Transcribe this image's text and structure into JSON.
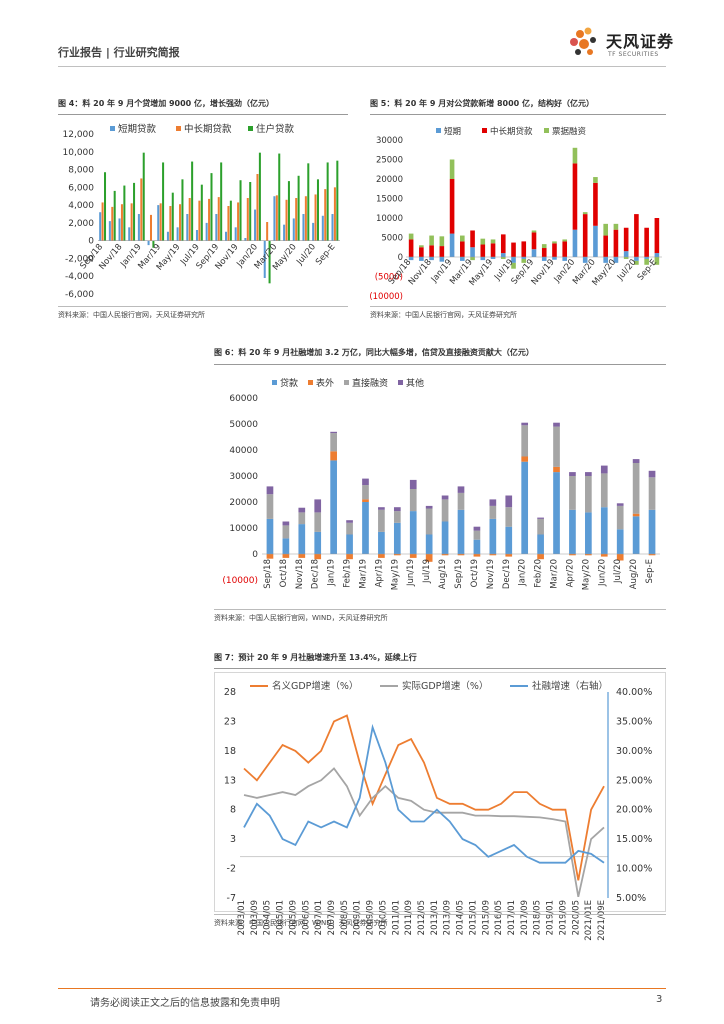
{
  "header": {
    "left_text": "行业报告 | 行业研究简报",
    "logo_cn": "天风证券",
    "logo_en": "TF SECURITIES"
  },
  "colors": {
    "blue": "#5b9bd5",
    "orange": "#ed7d31",
    "green": "#2ca02c",
    "red": "#e00000",
    "lightgreen": "#92c05a",
    "gray": "#a5a5a5",
    "purple": "#8064a2",
    "accent": "#e87722",
    "neg_label": "#e00000"
  },
  "figures": [
    {
      "title": "图 4：料 20 年 9 月个贷增加 9000 亿，增长强劲（亿元）",
      "source": "资料来源：中国人民银行官网，天风证券研究所"
    },
    {
      "title": "图 5：料 20 年 9 月对公贷款新增 8000 亿，结构好（亿元）",
      "source": "资料来源：中国人民银行官网，天风证券研究所"
    },
    {
      "title": "图 6：料 20 年 9 月社融增加 3.2 万亿，同比大幅多增，信贷及直接融资贡献大（亿元）",
      "source": "资料来源：中国人民银行官网，WIND，天风证券研究所"
    },
    {
      "title": "图 7：预计 20 年 9 月社融增速升至 13.4%，延续上行",
      "source": "资料来源：中国人民银行官网，WIND，天风证券研究所"
    }
  ],
  "chart_data": [
    {
      "id": "fig4",
      "type": "bar",
      "categories": [
        "Sep/18",
        "Oct/18",
        "Nov/18",
        "Dec/18",
        "Jan/19",
        "Feb/19",
        "Mar/19",
        "Apr/19",
        "May/19",
        "Jun/19",
        "Jul/19",
        "Aug/19",
        "Sep/19",
        "Oct/19",
        "Nov/19",
        "Dec/19",
        "Jan/20",
        "Feb/20",
        "Mar/20",
        "Apr/20",
        "May/20",
        "Jun/20",
        "Jul/20",
        "Aug/20",
        "Sep-E"
      ],
      "tick_labels": [
        "Sep/18",
        "Nov/18",
        "Jan/19",
        "Mar/19",
        "May/19",
        "Jul/19",
        "Sep/19",
        "Nov/19",
        "Jan/20",
        "Mar/20",
        "May/20",
        "Jul/20",
        "Sep-E"
      ],
      "tick_index": [
        0,
        2,
        4,
        6,
        8,
        10,
        12,
        14,
        16,
        18,
        20,
        22,
        24
      ],
      "series": [
        {
          "name": "短期贷款",
          "color_key": "blue",
          "values": [
            3200,
            2200,
            2500,
            1500,
            3000,
            -500,
            4000,
            1000,
            1500,
            3000,
            1200,
            2000,
            3000,
            1000,
            1500,
            300,
            3500,
            -4200,
            5000,
            1800,
            2500,
            3000,
            2000,
            2800,
            3000
          ]
        },
        {
          "name": "中长期贷款",
          "color_key": "orange",
          "values": [
            4300,
            3800,
            4100,
            4200,
            7000,
            2900,
            4200,
            3900,
            4100,
            4800,
            4500,
            4700,
            4900,
            3900,
            4300,
            4800,
            7500,
            2100,
            5100,
            4600,
            4800,
            5000,
            5200,
            5800,
            6000
          ]
        },
        {
          "name": "住户贷款",
          "color_key": "green",
          "values": [
            7700,
            5600,
            6200,
            6500,
            9900,
            -800,
            8800,
            5400,
            6900,
            8900,
            6300,
            7600,
            8800,
            4500,
            6800,
            6600,
            9900,
            -4800,
            9800,
            6700,
            7300,
            8700,
            6900,
            8800,
            9000
          ]
        }
      ],
      "ylim": [
        -6000,
        12000
      ],
      "yticks": [
        "12,000",
        "10,000",
        "8,000",
        "6,000",
        "4,000",
        "2,000",
        "0",
        "-2,000",
        "-4,000",
        "-6,000"
      ]
    },
    {
      "id": "fig5",
      "type": "bar",
      "stacked": true,
      "categories": [
        "Sep/18",
        "Oct/18",
        "Nov/18",
        "Dec/18",
        "Jan/19",
        "Feb/19",
        "Mar/19",
        "Apr/19",
        "May/19",
        "Jun/19",
        "Jul/19",
        "Aug/19",
        "Sep/19",
        "Oct/19",
        "Nov/19",
        "Dec/19",
        "Jan/20",
        "Feb/20",
        "Mar/20",
        "Apr/20",
        "May/20",
        "Jun/20",
        "Jul/20",
        "Aug/20",
        "Sep-E"
      ],
      "tick_labels": [
        "Sep/18",
        "Nov/18",
        "Jan/19",
        "Mar/19",
        "May/19",
        "Jul/19",
        "Sep/19",
        "Nov/19",
        "Jan/20",
        "Mar/20",
        "May/20",
        "Jul/20",
        "Sep-E"
      ],
      "tick_index": [
        0,
        2,
        4,
        6,
        8,
        10,
        12,
        14,
        16,
        18,
        20,
        22,
        24
      ],
      "series": [
        {
          "name": "短期",
          "color_key": "blue",
          "values": [
            -800,
            -1000,
            -800,
            -1200,
            6000,
            -1000,
            2500,
            -800,
            -500,
            1000,
            -1500,
            -500,
            2000,
            -1000,
            -700,
            -1000,
            7000,
            -1500,
            8000,
            -1500,
            -1500,
            1500,
            -1000,
            -500,
            1000
          ]
        },
        {
          "name": "中长期贷款",
          "color_key": "red",
          "values": [
            4500,
            2500,
            3000,
            2800,
            14000,
            4000,
            4300,
            3200,
            3500,
            4800,
            3700,
            4000,
            4300,
            2300,
            3500,
            4000,
            17000,
            11000,
            11000,
            5500,
            7000,
            6000,
            11000,
            7500,
            9000
          ]
        },
        {
          "name": "票据融资",
          "color_key": "lightgreen",
          "values": [
            1500,
            500,
            2500,
            2500,
            5000,
            1500,
            -800,
            1500,
            1000,
            -500,
            -1500,
            -1000,
            500,
            1000,
            500,
            500,
            4000,
            500,
            1500,
            3000,
            1500,
            -500,
            -1000,
            -1500,
            -2000
          ]
        }
      ],
      "ylim": [
        -10000,
        30000
      ],
      "yticks": [
        "30000",
        "25000",
        "20000",
        "15000",
        "10000",
        "5000",
        "0",
        "(5000)",
        "(10000)"
      ]
    },
    {
      "id": "fig6",
      "type": "bar",
      "stacked": true,
      "categories": [
        "Sep/18",
        "Oct/18",
        "Nov/18",
        "Dec/18",
        "Jan/19",
        "Feb/19",
        "Mar/19",
        "Apr/19",
        "May/19",
        "Jun/19",
        "Jul/19",
        "Aug/19",
        "Sep/19",
        "Oct/19",
        "Nov/19",
        "Dec/19",
        "Jan/20",
        "Feb/20",
        "Mar/20",
        "Apr/20",
        "May/20",
        "Jun/20",
        "Jul/20",
        "Aug/20",
        "Sep-E"
      ],
      "series": [
        {
          "name": "贷款",
          "color_key": "blue",
          "values": [
            13500,
            6000,
            11500,
            8500,
            36000,
            7500,
            20000,
            8500,
            12000,
            16500,
            7500,
            12500,
            17000,
            5500,
            13500,
            10500,
            35500,
            7500,
            31500,
            17000,
            16000,
            18000,
            9500,
            14500,
            17000
          ]
        },
        {
          "name": "表外",
          "color_key": "orange",
          "values": [
            -1800,
            -1500,
            -1500,
            -2000,
            3500,
            -2000,
            1000,
            -1500,
            -500,
            -1500,
            -3000,
            -500,
            -500,
            -1000,
            -500,
            -1000,
            2000,
            -2000,
            2000,
            -500,
            -500,
            -1000,
            -2500,
            1000,
            -500
          ]
        },
        {
          "name": "直接融资",
          "color_key": "gray",
          "values": [
            9500,
            5000,
            4500,
            7500,
            7000,
            4500,
            5500,
            8500,
            4500,
            8500,
            10000,
            8500,
            6500,
            3500,
            5000,
            7500,
            12000,
            6000,
            15500,
            13000,
            14000,
            13000,
            9000,
            19500,
            12500
          ]
        },
        {
          "name": "其他",
          "color_key": "purple",
          "values": [
            3000,
            1500,
            1800,
            5000,
            500,
            1000,
            2500,
            1000,
            1500,
            3500,
            1000,
            1500,
            2500,
            1500,
            2500,
            4500,
            1000,
            500,
            1500,
            1500,
            1500,
            3000,
            1000,
            1500,
            2500
          ]
        }
      ],
      "ylim": [
        -10000,
        60000
      ],
      "yticks": [
        "60000",
        "50000",
        "40000",
        "30000",
        "20000",
        "10000",
        "0",
        "(10000)"
      ]
    },
    {
      "id": "fig7",
      "type": "line",
      "x_labels": [
        "2003/01",
        "2003/09",
        "2004/05",
        "2005/01",
        "2005/09",
        "2006/05",
        "2007/01",
        "2007/09",
        "2008/05",
        "2009/01",
        "2009/09",
        "2010/05",
        "2011/01",
        "2011/09",
        "2012/05",
        "2013/01",
        "2013/09",
        "2014/05",
        "2015/01",
        "2015/09",
        "2016/05",
        "2017/01",
        "2017/09",
        "2018/05",
        "2019/01",
        "2019/09",
        "2020/05",
        "2021/01E",
        "2021/09E"
      ],
      "series": [
        {
          "name": "名义GDP增速（%）",
          "color_key": "orange",
          "axis": "left",
          "values": [
            15,
            13,
            16,
            19,
            18,
            16,
            18,
            23,
            24,
            16,
            9,
            14,
            19,
            20,
            16,
            10,
            9,
            9,
            8,
            8,
            9,
            11,
            11,
            9,
            8,
            8,
            -4,
            8,
            12
          ]
        },
        {
          "name": "实际GDP增速（%）",
          "color_key": "gray",
          "axis": "left",
          "values": [
            10.5,
            10,
            10.5,
            11,
            10.5,
            12,
            13,
            15,
            12,
            7,
            10,
            12,
            10,
            9.5,
            8,
            7.5,
            7.5,
            7.5,
            7,
            7,
            6.9,
            6.9,
            6.8,
            6.7,
            6.4,
            6,
            -6.8,
            3,
            5
          ]
        },
        {
          "name": "社融增速（右轴）",
          "color_key": "blue",
          "axis": "right",
          "values": [
            17,
            21,
            19,
            15,
            14,
            18,
            17,
            18,
            17,
            22,
            34,
            28,
            20,
            18,
            18,
            20,
            18,
            15,
            14,
            12,
            13,
            14,
            12,
            11,
            11,
            11,
            13,
            12.5,
            11
          ]
        }
      ],
      "ylim_left": [
        -7,
        28
      ],
      "ylim_right": [
        5,
        40
      ],
      "yticks_left": [
        "28",
        "23",
        "18",
        "13",
        "8",
        "3",
        "-2",
        "-7"
      ],
      "yticks_right": [
        "40.00%",
        "35.00%",
        "30.00%",
        "25.00%",
        "20.00%",
        "15.00%",
        "10.00%",
        "5.00%"
      ]
    }
  ],
  "footer": {
    "disclaimer": "请务必阅读正文之后的信息披露和免责申明",
    "page_number": "3"
  }
}
